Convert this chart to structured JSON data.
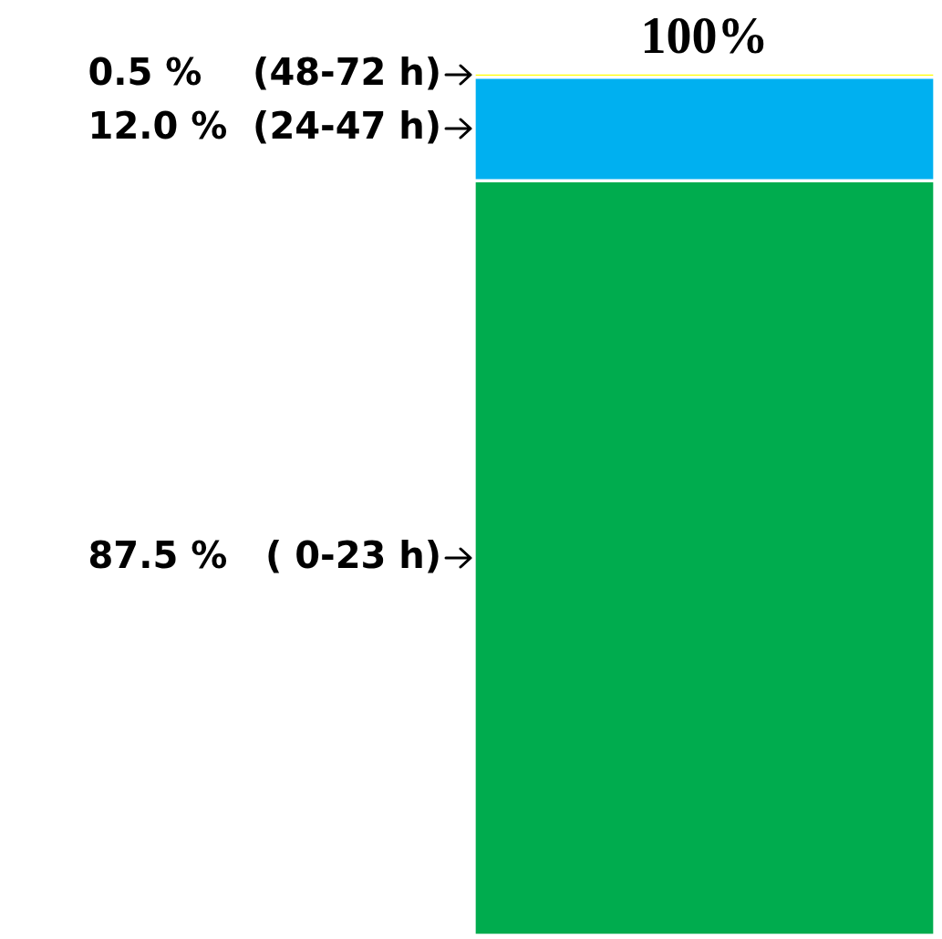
{
  "chart_data": {
    "type": "bar",
    "stacked": true,
    "categories": [
      null
    ],
    "tick_labels": false,
    "series": [
      {
        "color": "#00ac4e",
        "values": [
          87.5
        ],
        "value_labels": [
          "87.5 %   ( 0-23 h)"
        ]
      },
      {
        "color": "#00b0f0",
        "values": [
          12.0
        ],
        "value_labels": [
          "12.0 %  (24-47 h)"
        ]
      },
      {
        "color": "#ffff00",
        "values": [
          0.5
        ],
        "value_labels": [
          "0.5 %    (48-72 h)"
        ]
      }
    ],
    "totals": [
      "100%"
    ]
  }
}
